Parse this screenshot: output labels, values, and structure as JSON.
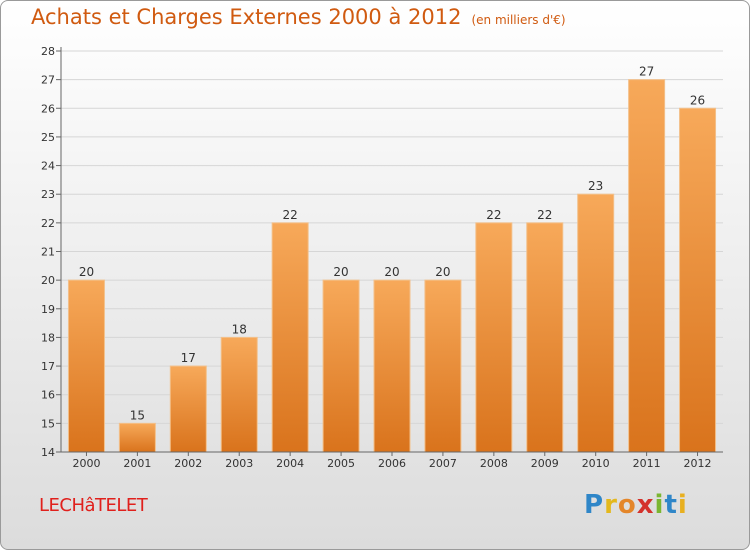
{
  "title": "Achats et Charges Externes 2000 à 2012",
  "unit": "(en milliers d'€)",
  "commune": "LECHâTELET",
  "logo": [
    "P",
    "r",
    "o",
    "x",
    "i",
    "t",
    "i"
  ],
  "colors": {
    "bar_top": "#f7a95a",
    "bar_bottom": "#d9731c",
    "title": "#d05a10"
  },
  "chart_data": {
    "type": "bar",
    "title": "Achats et Charges Externes 2000 à 2012",
    "ylabel": "(en milliers d'€)",
    "categories": [
      "2000",
      "2001",
      "2002",
      "2003",
      "2004",
      "2005",
      "2006",
      "2007",
      "2008",
      "2009",
      "2010",
      "2011",
      "2012"
    ],
    "values": [
      20,
      15,
      17,
      18,
      22,
      20,
      20,
      20,
      22,
      22,
      23,
      27,
      26
    ],
    "ylim": [
      14,
      28
    ],
    "yticks": [
      14,
      15,
      16,
      17,
      18,
      19,
      20,
      21,
      22,
      23,
      24,
      25,
      26,
      27,
      28
    ],
    "grid": true
  }
}
